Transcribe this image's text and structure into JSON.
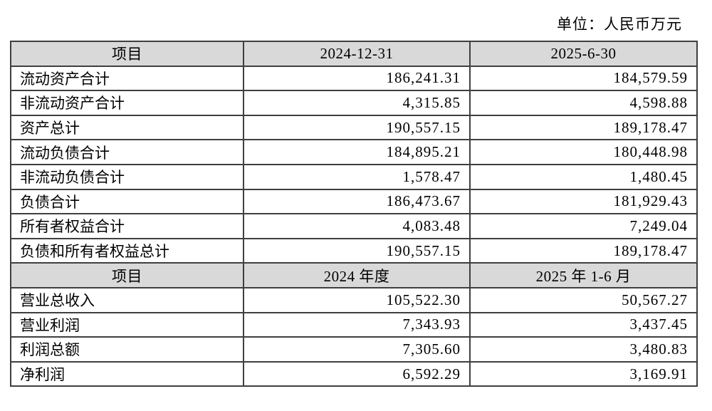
{
  "page": {
    "unit_label": "单位：人民币万元"
  },
  "colors": {
    "header_bg": "#d9d9d9",
    "border": "#3f3f3f",
    "text": "#000000",
    "background": "#ffffff"
  },
  "table": {
    "sections": [
      {
        "header": {
          "item": "项目",
          "col1": "2024-12-31",
          "col2": "2025-6-30"
        },
        "rows": [
          {
            "item": "流动资产合计",
            "col1": "186,241.31",
            "col2": "184,579.59"
          },
          {
            "item": "非流动资产合计",
            "col1": "4,315.85",
            "col2": "4,598.88"
          },
          {
            "item": "资产总计",
            "col1": "190,557.15",
            "col2": "189,178.47"
          },
          {
            "item": "流动负债合计",
            "col1": "184,895.21",
            "col2": "180,448.98"
          },
          {
            "item": "非流动负债合计",
            "col1": "1,578.47",
            "col2": "1,480.45"
          },
          {
            "item": "负债合计",
            "col1": "186,473.67",
            "col2": "181,929.43"
          },
          {
            "item": "所有者权益合计",
            "col1": "4,083.48",
            "col2": "7,249.04"
          },
          {
            "item": "负债和所有者权益总计",
            "col1": "190,557.15",
            "col2": "189,178.47"
          }
        ]
      },
      {
        "header": {
          "item": "项目",
          "col1": "2024 年度",
          "col2": "2025 年 1-6 月"
        },
        "rows": [
          {
            "item": "营业总收入",
            "col1": "105,522.30",
            "col2": "50,567.27"
          },
          {
            "item": "营业利润",
            "col1": "7,343.93",
            "col2": "3,437.45"
          },
          {
            "item": "利润总额",
            "col1": "7,305.60",
            "col2": "3,480.83"
          },
          {
            "item": "净利润",
            "col1": "6,592.29",
            "col2": "3,169.91"
          }
        ]
      }
    ]
  }
}
